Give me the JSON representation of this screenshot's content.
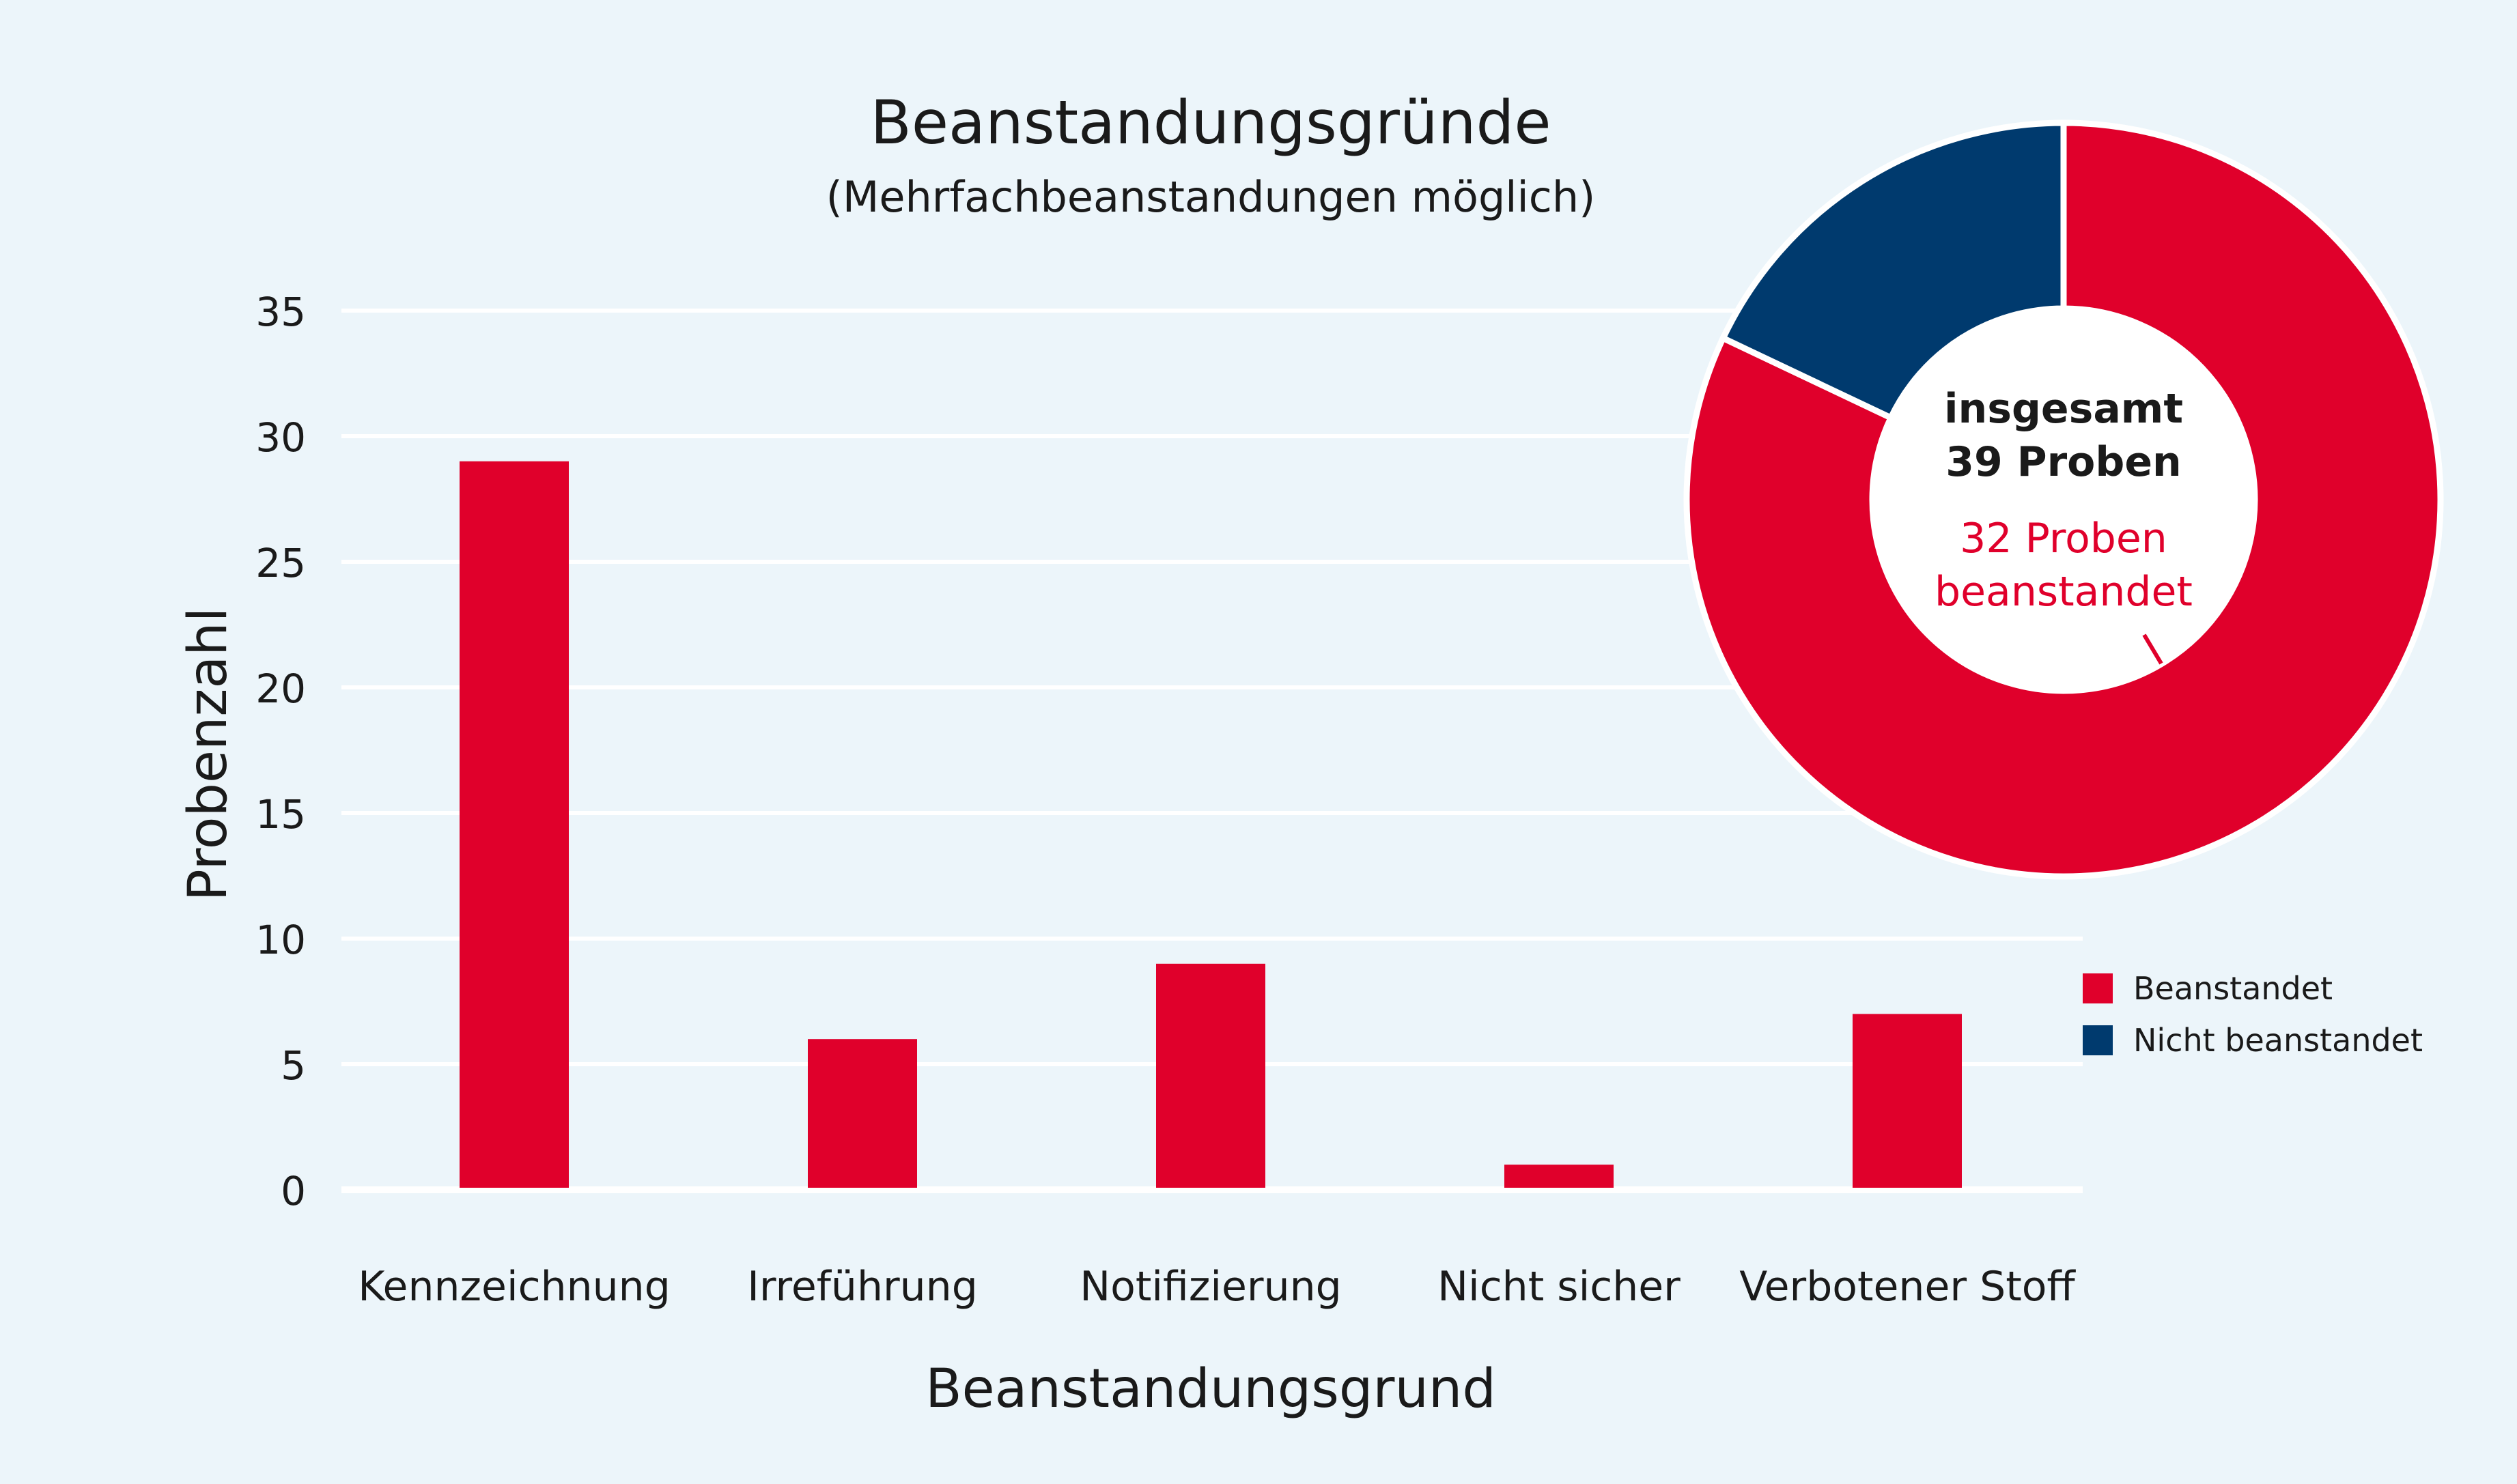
{
  "chart_data": [
    {
      "type": "bar",
      "title": "Beanstandungsgründe",
      "subtitle": "(Mehrfachbeanstandungen möglich)",
      "xlabel": "Beanstandungsgrund",
      "ylabel": "Probenzahl",
      "categories": [
        "Kennzeichnung",
        "Irreführung",
        "Notifizierung",
        "Nicht sicher",
        "Verbotener Stoff"
      ],
      "values": [
        29,
        6,
        9,
        1,
        7
      ],
      "ylim": [
        0,
        35
      ],
      "yticks": [
        0,
        5,
        10,
        15,
        20,
        25,
        30,
        35
      ],
      "grid": true,
      "color": "#e0002b"
    },
    {
      "type": "pie",
      "style": "donut",
      "center_text": [
        "insgesamt",
        "39 Proben"
      ],
      "annotation": [
        "32 Proben",
        "beanstandet"
      ],
      "slices": [
        {
          "name": "Beanstandet",
          "value": 32,
          "color": "#e0002b"
        },
        {
          "name": "Nicht beanstandet",
          "value": 7,
          "color": "#003a6e"
        }
      ],
      "legend_position": "right"
    }
  ]
}
